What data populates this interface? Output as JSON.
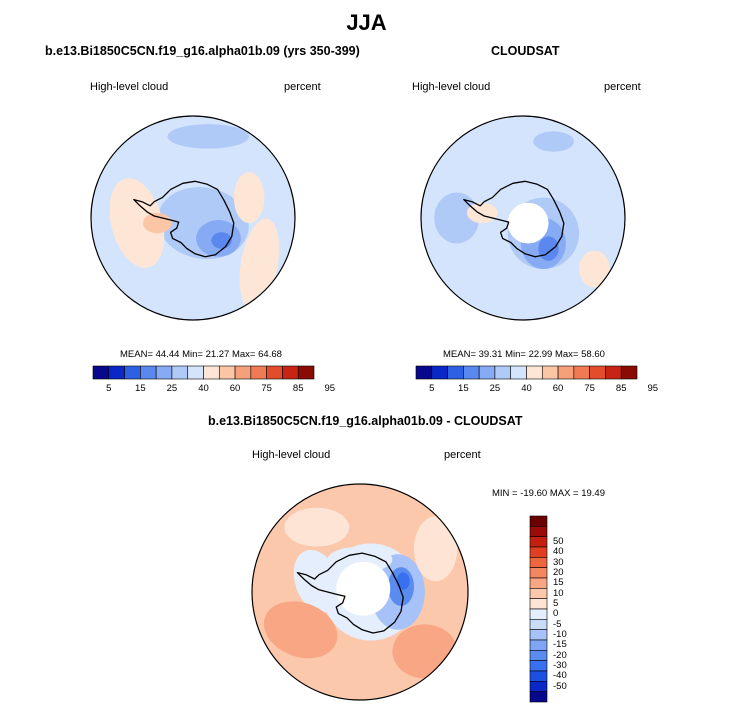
{
  "main_title": "JJA",
  "colors": {
    "diverging": [
      "#08088c",
      "#0a28c8",
      "#1c50e0",
      "#3870f0",
      "#5a8cf0",
      "#7ea6f4",
      "#a6c2f8",
      "#c8dcfa",
      "#e4eefc",
      "#fde4d4",
      "#fbc8ac",
      "#f8a684",
      "#f48660",
      "#ee6640",
      "#e04022",
      "#c42010",
      "#9a0c08",
      "#6a0000"
    ],
    "sequential": [
      "#08088c",
      "#0a28c8",
      "#2e60e4",
      "#5a88ee",
      "#86aaf4",
      "#b0caf8",
      "#d4e4fc",
      "#fde6d6",
      "#fbc6a6",
      "#f6a07a",
      "#f07a54",
      "#e24e2c",
      "#c82414",
      "#8a0a04"
    ]
  },
  "chart_data": [
    {
      "type": "heatmap",
      "title": "b.e13.Bi1850C5CN.f19_g16.alpha01b.09 (yrs 350-399)",
      "left_label": "High-level cloud",
      "right_label": "percent",
      "stats": {
        "mean_label": "MEAN=",
        "mean": "44.44",
        "min_label": "Min=",
        "min": "21.27",
        "max_label": "Max=",
        "max": "64.68"
      },
      "colorbar_labels": [
        "5",
        "15",
        "25",
        "40",
        "60",
        "75",
        "85",
        "95"
      ]
    },
    {
      "type": "heatmap",
      "title": "CLOUDSAT",
      "left_label": "High-level cloud",
      "right_label": "percent",
      "stats": {
        "mean_label": "MEAN=",
        "mean": "39.31",
        "min_label": "Min=",
        "min": "22.99",
        "max_label": "Max=",
        "max": "58.60"
      },
      "colorbar_labels": [
        "5",
        "15",
        "25",
        "40",
        "60",
        "75",
        "85",
        "95"
      ]
    },
    {
      "type": "heatmap",
      "title": "b.e13.Bi1850C5CN.f19_g16.alpha01b.09 - CLOUDSAT",
      "left_label": "High-level cloud",
      "right_label": "percent",
      "minmax": "MIN = -19.60 MAX =  19.49",
      "colorbar_labels": [
        "50",
        "40",
        "30",
        "20",
        "15",
        "10",
        "5",
        "0",
        "-5",
        "-10",
        "-15",
        "-20",
        "-30",
        "-40",
        "-50"
      ]
    }
  ]
}
